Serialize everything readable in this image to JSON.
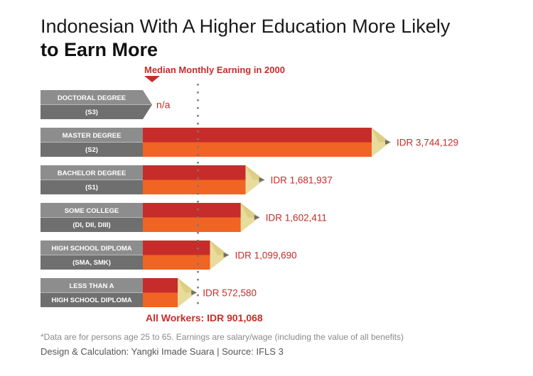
{
  "title_line1": "Indonesian With A Higher Education More Likely",
  "title_line2": "to Earn More",
  "median_label": "Median Monthly Earning in 2000",
  "all_workers": "All Workers: IDR 901,068",
  "footnote": "*Data are for persons age 25 to 65. Earnings are salary/wage (including the value of all benefits)",
  "credit": "Design & Calculation: Yangki Imade Suara | Source: IFLS 3",
  "colors": {
    "label_top": "#8d8d8d",
    "label_bottom": "#6f6f6f",
    "bar_top": "#c62d2a",
    "bar_bottom": "#f06424",
    "tip_wood": "#e8dc9c",
    "tip_lead": "#6e6e6e",
    "value_text": "#c62d2a",
    "reference_line": "#777777"
  },
  "chart_data": {
    "type": "bar",
    "orientation": "horizontal",
    "style": "pencil",
    "categories": [
      {
        "line1": "DOCTORAL DEGREE",
        "line2": "(S3)"
      },
      {
        "line1": "MASTER DEGREE",
        "line2": "(S2)"
      },
      {
        "line1": "BACHELOR DEGREE",
        "line2": "(S1)"
      },
      {
        "line1": "SOME COLLEGE",
        "line2": "(DI, DII, DIII)"
      },
      {
        "line1": "HIGH SCHOOL DIPLOMA",
        "line2": "(SMA, SMK)"
      },
      {
        "line1": "LESS THAN A",
        "line2": "HIGH SCHOOL DIPLOMA"
      }
    ],
    "values": [
      null,
      3744129,
      1681937,
      1602411,
      1099690,
      572580
    ],
    "value_labels": [
      "n/a",
      "IDR 3,744,129",
      "IDR 1,681,937",
      "IDR 1,602,411",
      "IDR 1,099,690",
      "IDR 572,580"
    ],
    "reference_value": 901068,
    "xlim": [
      0,
      4500000
    ]
  }
}
